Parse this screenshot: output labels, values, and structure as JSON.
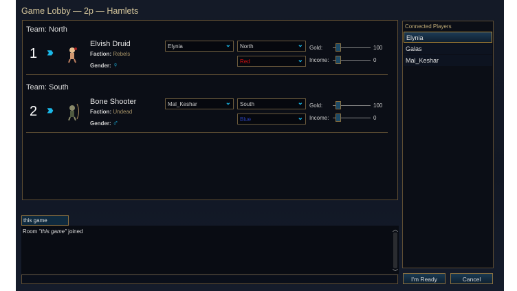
{
  "window": {
    "title": "Game Lobby — 2p — Hamlets"
  },
  "teams": [
    {
      "label": "Team: North",
      "side": {
        "number": "1",
        "unit": "Elvish Druid",
        "faction_label": "Faction:",
        "faction": "Rebels",
        "gender_label": "Gender:",
        "gender": "♀",
        "player": "Elynia",
        "team": "North",
        "color": "Red",
        "color_hex": "#d01010",
        "gold_label": "Gold:",
        "gold": "100",
        "income_label": "Income:",
        "income": "0"
      }
    },
    {
      "label": "Team: South",
      "side": {
        "number": "2",
        "unit": "Bone Shooter",
        "faction_label": "Faction:",
        "faction": "Undead",
        "gender_label": "Gender:",
        "gender": "♂",
        "player": "Mal_Keshar",
        "team": "South",
        "color": "Blue",
        "color_hex": "#2a3fb0",
        "gold_label": "Gold:",
        "gold": "100",
        "income_label": "Income:",
        "income": "0"
      }
    }
  ],
  "players": {
    "header": "Connected Players",
    "items": [
      "Elynia",
      "Galas",
      "Mal_Keshar"
    ],
    "selected": "Elynia"
  },
  "chat": {
    "room_tab": "this game",
    "log_prefix": "Room ",
    "log_room": "\"this game\"",
    "log_suffix": " joined",
    "input": ""
  },
  "buttons": {
    "ready": "I'm Ready",
    "cancel": "Cancel"
  },
  "colors": {
    "accent": "#1ab8e8",
    "border": "#5e4d33",
    "title": "#d6c79c"
  }
}
